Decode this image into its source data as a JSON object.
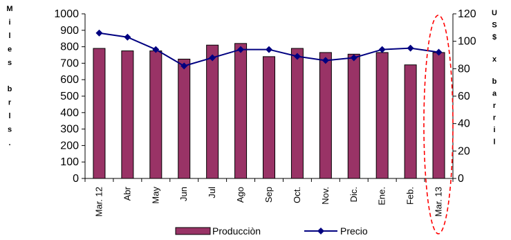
{
  "chart_data": {
    "type": "bar",
    "categories": [
      "Mar. 12",
      "Abr",
      "May",
      "Jun",
      "Jul",
      "Ago",
      "Sep",
      "Oct.",
      "Nov.",
      "Dic.",
      "Ene.",
      "Feb.",
      "Mar. 13"
    ],
    "series": [
      {
        "name": "Producciòn",
        "type": "bar",
        "axis": "left",
        "color": "#993366",
        "values": [
          790,
          775,
          775,
          725,
          810,
          820,
          740,
          790,
          765,
          755,
          765,
          690,
          765
        ]
      },
      {
        "name": "Precio",
        "type": "line",
        "axis": "right",
        "color": "#000080",
        "values": [
          106,
          103,
          94,
          82,
          88,
          94,
          94,
          89,
          86,
          88,
          94,
          95,
          92
        ]
      }
    ],
    "ylabel": "Miles brls.",
    "y2label": "US$ x barril",
    "ylim": [
      0,
      1000
    ],
    "y2lim": [
      0,
      120
    ],
    "yticks": [
      "0",
      "100",
      "200",
      "300",
      "400",
      "500",
      "600",
      "700",
      "800",
      "900",
      "1000"
    ],
    "y2ticks": [
      "0",
      "20",
      "40",
      "60",
      "80",
      "100",
      "120"
    ],
    "grid": false,
    "legend_position": "bottom",
    "highlight": {
      "category": "Mar. 13",
      "shape": "dashed-ellipse",
      "color": "#ff0000"
    }
  }
}
